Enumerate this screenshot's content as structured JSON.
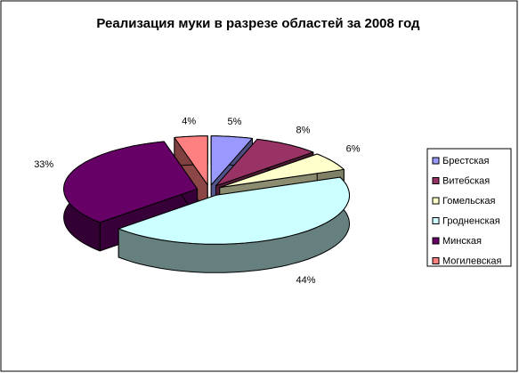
{
  "chart_data": {
    "type": "pie3d",
    "title": "Реализация муки в разрезе областей за 2008 год",
    "categories": [
      "Брестская",
      "Витебская",
      "Гомельская",
      "Гродненская",
      "Минская",
      "Могилевская"
    ],
    "values": [
      5,
      8,
      6,
      44,
      33,
      4
    ],
    "value_labels": [
      "5%",
      "8%",
      "6%",
      "44%",
      "33%",
      "4%"
    ],
    "colors": [
      "#9999ff",
      "#993366",
      "#ffffcc",
      "#ccffff",
      "#660066",
      "#ff8080"
    ],
    "legend": "right"
  }
}
